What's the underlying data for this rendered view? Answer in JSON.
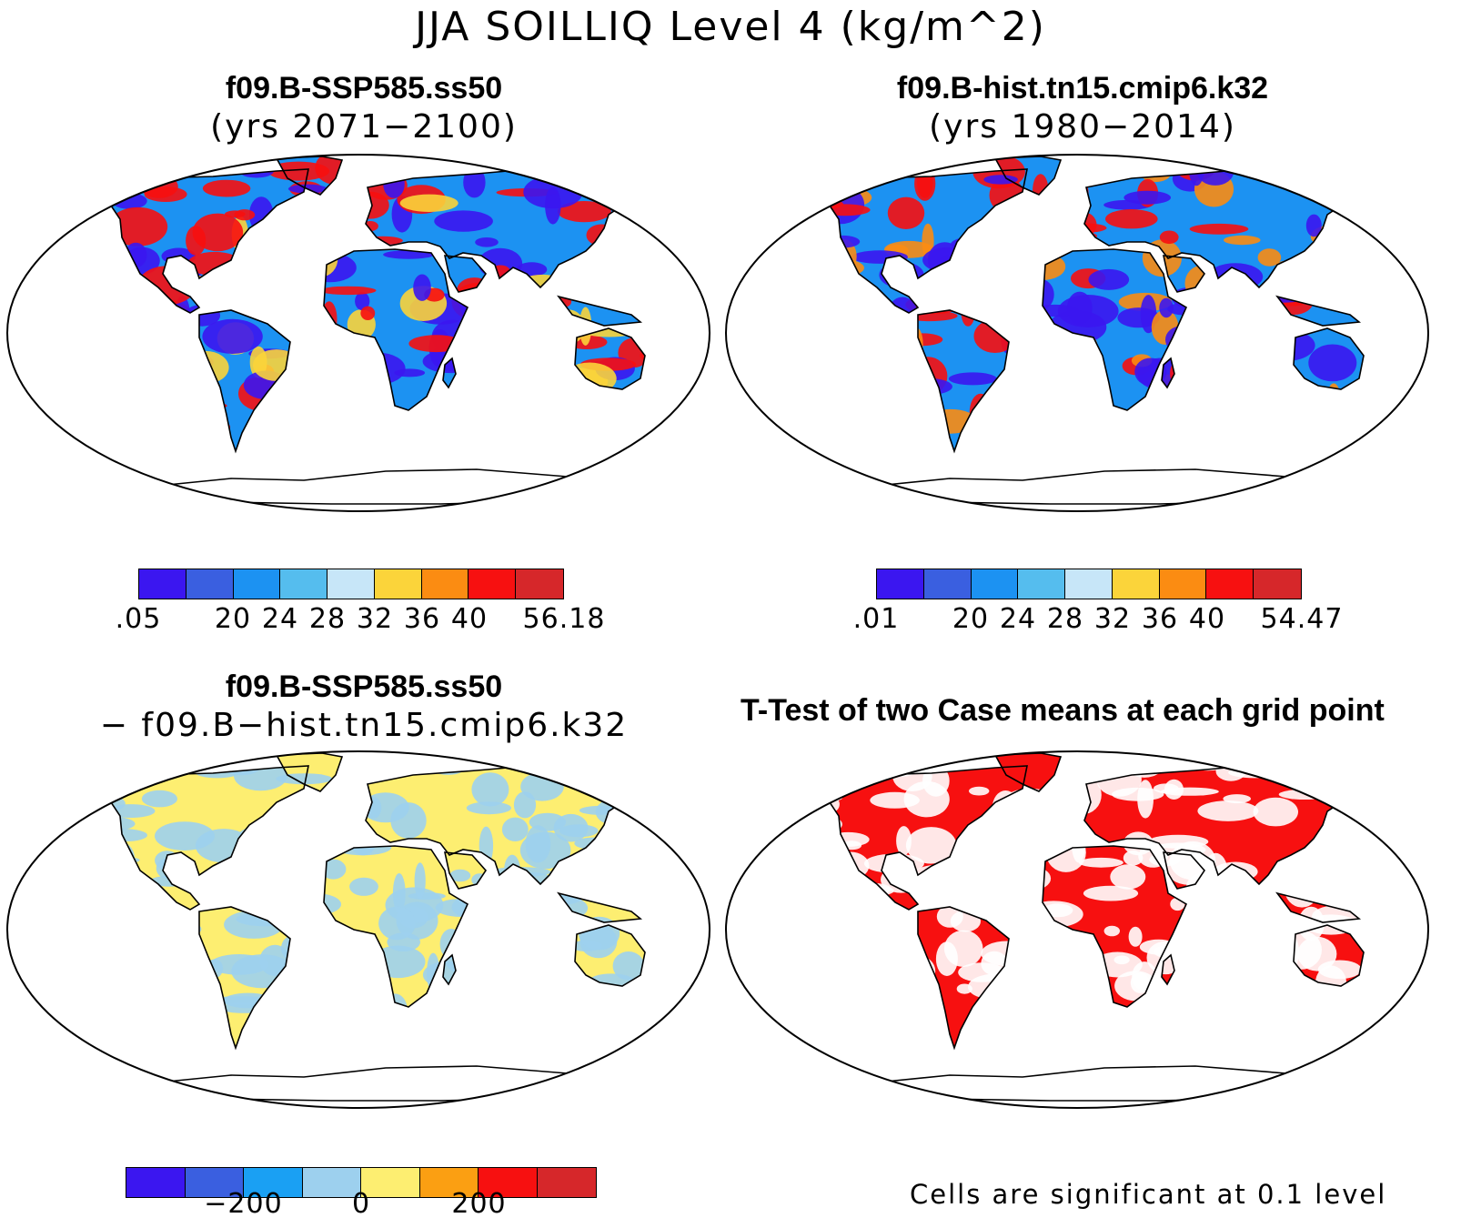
{
  "title": "JJA SOILLIQ Level 4 (kg/m^2)",
  "panels": {
    "p1": {
      "title": "f09.B-SSP585.ss50",
      "subtitle": "(yrs 2071−2100)"
    },
    "p2": {
      "title": "f09.B-hist.tn15.cmip6.k32",
      "subtitle": "(yrs 1980−2014)"
    },
    "p3": {
      "title": "f09.B-SSP585.ss50",
      "subtitle": "− f09.B−hist.tn15.cmip6.k32"
    },
    "p4": {
      "title": "T-Test of two Case means at each grid point"
    }
  },
  "colorbars": {
    "cb1": {
      "colors": [
        "#3b16f0",
        "#3a5fe0",
        "#1c92f2",
        "#55bdee",
        "#c7e6f8",
        "#fbd43a",
        "#fb8c12",
        "#f71010",
        "#d6272a"
      ],
      "labels": [
        ".05",
        "20",
        "24",
        "28",
        "32",
        "36",
        "40",
        "56.18"
      ],
      "label_boundaries": [
        0,
        2,
        3,
        4,
        5,
        6,
        7,
        9
      ]
    },
    "cb2": {
      "colors": [
        "#3b16f0",
        "#3a5fe0",
        "#1c92f2",
        "#55bdee",
        "#c7e6f8",
        "#fbd43a",
        "#fb8c12",
        "#f71010",
        "#d6272a"
      ],
      "labels": [
        ".01",
        "20",
        "24",
        "28",
        "32",
        "36",
        "40",
        "54.47"
      ],
      "label_boundaries": [
        0,
        2,
        3,
        4,
        5,
        6,
        7,
        9
      ]
    },
    "cb3": {
      "colors": [
        "#3b16f0",
        "#3a5fe0",
        "#1aa0f3",
        "#9dd0ee",
        "#fdee71",
        "#fb9f12",
        "#f71010",
        "#d6272a"
      ],
      "labels": [
        "−200",
        "0",
        "200"
      ],
      "label_boundaries": [
        2,
        4,
        6
      ]
    }
  },
  "footnote": "Cells are significant at 0.1 level",
  "map_colors": {
    "p1": {
      "base": "#1c92f2",
      "dry": "#3b16f0",
      "wet": "#f71010",
      "warm": "#fbd43a"
    },
    "p2": {
      "base": "#1c92f2",
      "dry": "#3b16f0",
      "wet": "#f71010",
      "warm": "#fb8c12"
    },
    "p3": {
      "base": "#fdee71",
      "alt": "#9dd0ee"
    },
    "p4": {
      "base": "#f71010",
      "alt": "#ffffff"
    }
  }
}
